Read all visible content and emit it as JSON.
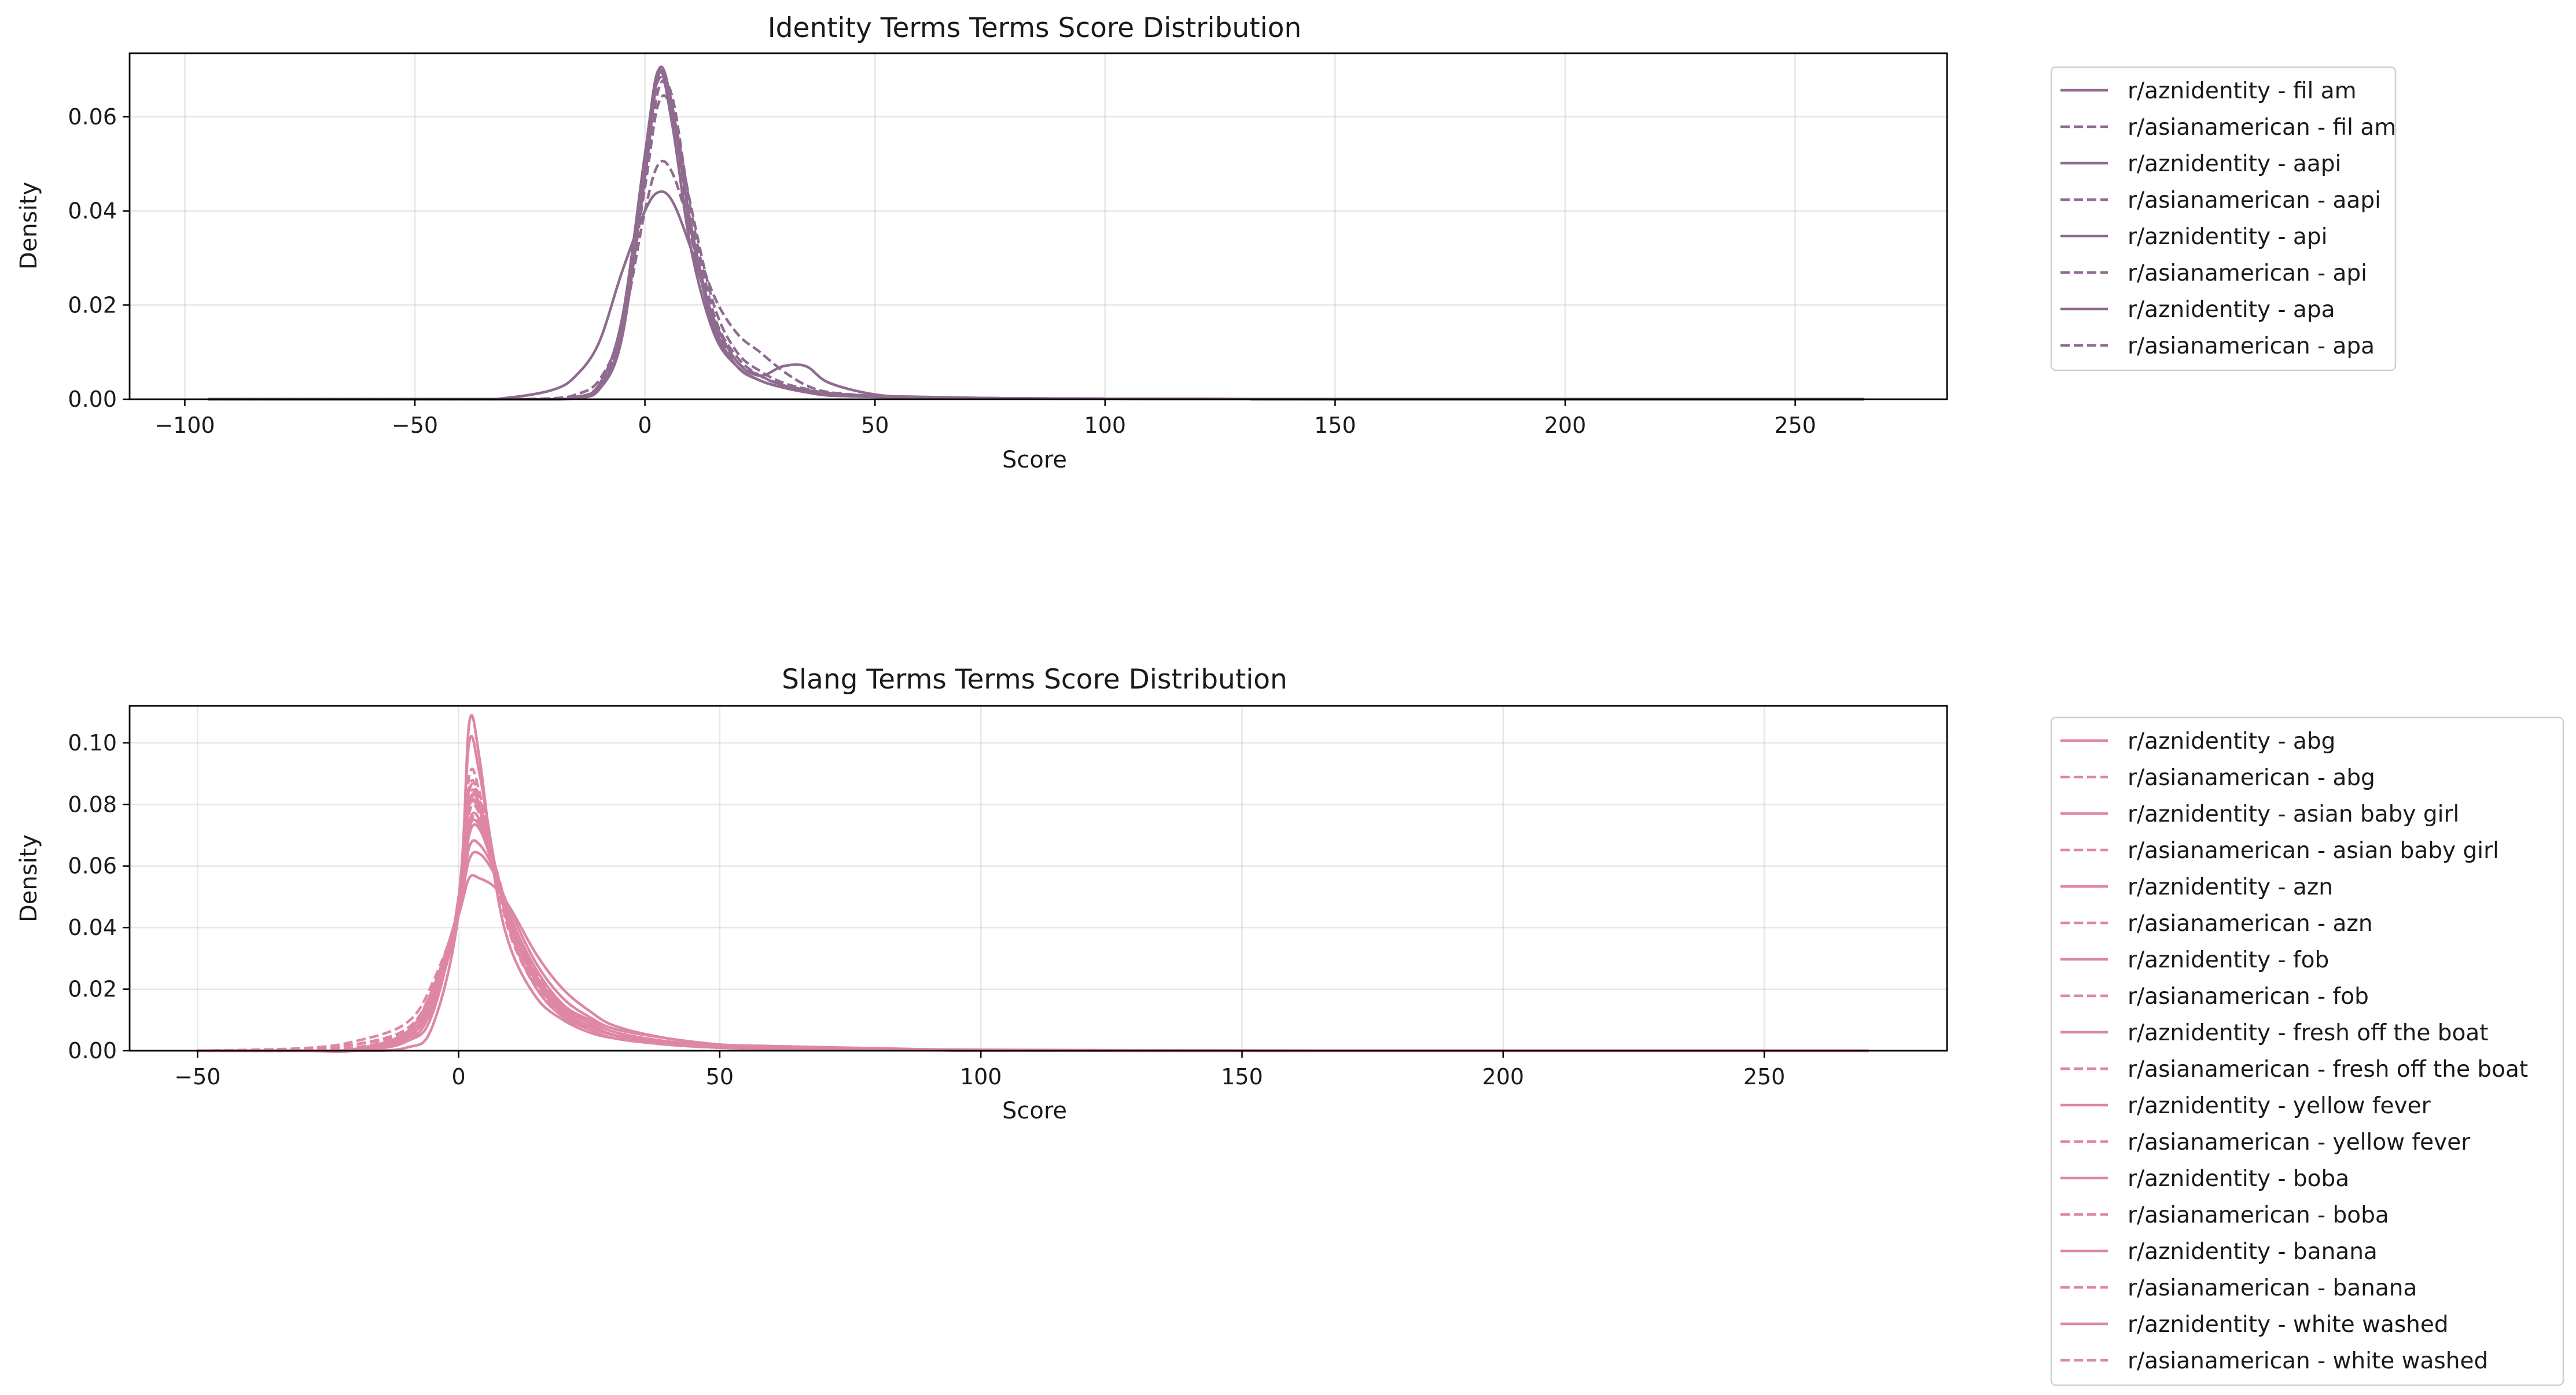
{
  "charts": [
    {
      "title": "Identity Terms Terms Score Distribution",
      "xlabel": "Score",
      "ylabel": "Density",
      "xticks": [
        "−100",
        "−50",
        "0",
        "50",
        "100",
        "150",
        "200",
        "250"
      ],
      "yticks": [
        "0.00",
        "0.02",
        "0.04",
        "0.06"
      ],
      "legend": [
        "r/aznidentity - fil am",
        "r/asianamerican - fil am",
        "r/aznidentity - aapi",
        "r/asianamerican - aapi",
        "r/aznidentity - api",
        "r/asianamerican - api",
        "r/aznidentity - apa",
        "r/asianamerican - apa"
      ]
    },
    {
      "title": "Slang Terms Terms Score Distribution",
      "xlabel": "Score",
      "ylabel": "Density",
      "xticks": [
        "−50",
        "0",
        "50",
        "100",
        "150",
        "200",
        "250"
      ],
      "yticks": [
        "0.00",
        "0.02",
        "0.04",
        "0.06",
        "0.08",
        "0.10"
      ],
      "legend": [
        "r/aznidentity - abg",
        "r/asianamerican - abg",
        "r/aznidentity - asian baby girl",
        "r/asianamerican - asian baby girl",
        "r/aznidentity - azn",
        "r/asianamerican - azn",
        "r/aznidentity - fob",
        "r/asianamerican - fob",
        "r/aznidentity - fresh off the boat",
        "r/asianamerican - fresh off the boat",
        "r/aznidentity - yellow fever",
        "r/asianamerican - yellow fever",
        "r/aznidentity - boba",
        "r/asianamerican - boba",
        "r/aznidentity - banana",
        "r/asianamerican - banana",
        "r/aznidentity - white washed",
        "r/asianamerican - white washed"
      ]
    }
  ],
  "chart_data": [
    {
      "type": "line",
      "title": "Identity Terms Terms Score Distribution",
      "xlabel": "Score",
      "ylabel": "Density",
      "xlim": [
        -112,
        283
      ],
      "ylim": [
        0,
        0.0735
      ],
      "grid": true,
      "legend_position": "outside-right",
      "color": "#8f6b8f",
      "x": [
        -95,
        -40,
        -30,
        -20,
        -15,
        -10,
        -5,
        0,
        3,
        6,
        10,
        15,
        20,
        25,
        30,
        35,
        40,
        50,
        60,
        80,
        100,
        150,
        200,
        265
      ],
      "series": [
        {
          "name": "r/aznidentity - fil am",
          "dash": "solid",
          "values": [
            0,
            0,
            0,
            0,
            0.0005,
            0.003,
            0.017,
            0.052,
            0.07,
            0.058,
            0.032,
            0.014,
            0.007,
            0.004,
            0.0025,
            0.0015,
            0.0008,
            0.0005,
            0.0003,
            0.0002,
            0.0001,
            0,
            0,
            0
          ]
        },
        {
          "name": "r/asianamerican - fil am",
          "dash": "dashed",
          "values": [
            0,
            0,
            0,
            0,
            0.0004,
            0.0025,
            0.015,
            0.05,
            0.068,
            0.06,
            0.035,
            0.016,
            0.008,
            0.005,
            0.003,
            0.0018,
            0.001,
            0.0006,
            0.0004,
            0.0002,
            0.0001,
            0,
            0,
            0
          ]
        },
        {
          "name": "r/aznidentity - aapi",
          "dash": "solid",
          "values": [
            0,
            0,
            0,
            0,
            0.0003,
            0.002,
            0.013,
            0.048,
            0.07,
            0.062,
            0.036,
            0.015,
            0.007,
            0.004,
            0.0025,
            0.0015,
            0.0008,
            0.0005,
            0.0003,
            0.0002,
            0.0001,
            0,
            0,
            0
          ]
        },
        {
          "name": "r/asianamerican - aapi",
          "dash": "dashed",
          "values": [
            0,
            0,
            0,
            0,
            0.0004,
            0.003,
            0.016,
            0.046,
            0.066,
            0.064,
            0.04,
            0.018,
            0.009,
            0.005,
            0.003,
            0.002,
            0.0012,
            0.0007,
            0.0004,
            0.0002,
            0.0001,
            0,
            0,
            0
          ]
        },
        {
          "name": "r/aznidentity - api",
          "dash": "solid",
          "values": [
            0,
            0,
            0.0003,
            0.002,
            0.005,
            0.012,
            0.027,
            0.04,
            0.044,
            0.042,
            0.032,
            0.017,
            0.008,
            0.005,
            0.007,
            0.007,
            0.0035,
            0.001,
            0.0005,
            0.0002,
            0.0001,
            0,
            0,
            0
          ]
        },
        {
          "name": "r/asianamerican - api",
          "dash": "dashed",
          "values": [
            0,
            0,
            0,
            0.0002,
            0.001,
            0.004,
            0.015,
            0.04,
            0.05,
            0.048,
            0.036,
            0.022,
            0.014,
            0.01,
            0.006,
            0.003,
            0.0015,
            0.0007,
            0.0004,
            0.0002,
            0.0001,
            0,
            0,
            0
          ]
        },
        {
          "name": "r/aznidentity - apa",
          "dash": "solid",
          "values": [
            0,
            0,
            0,
            0,
            0.0003,
            0.0025,
            0.014,
            0.047,
            0.069,
            0.061,
            0.037,
            0.016,
            0.007,
            0.004,
            0.0025,
            0.0015,
            0.0009,
            0.0006,
            0.0003,
            0.0002,
            0.0001,
            0,
            0,
            0
          ]
        },
        {
          "name": "r/asianamerican - apa",
          "dash": "dashed",
          "values": [
            0,
            0,
            0,
            0,
            0.0004,
            0.003,
            0.015,
            0.045,
            0.063,
            0.061,
            0.041,
            0.02,
            0.01,
            0.006,
            0.0035,
            0.0022,
            0.0013,
            0.0007,
            0.0004,
            0.0002,
            0.0001,
            0,
            0,
            0
          ]
        }
      ]
    },
    {
      "type": "line",
      "title": "Slang Terms Terms Score Distribution",
      "xlabel": "Score",
      "ylabel": "Density",
      "xlim": [
        -63,
        285
      ],
      "ylim": [
        0,
        0.112
      ],
      "grid": true,
      "legend_position": "outside-right",
      "color": "#de87a4",
      "x": [
        -50,
        -30,
        -20,
        -10,
        -5,
        0,
        2,
        4,
        7,
        10,
        15,
        20,
        25,
        30,
        40,
        50,
        60,
        80,
        100,
        150,
        200,
        270
      ],
      "series": [
        {
          "name": "r/aznidentity - abg",
          "dash": "solid",
          "values": [
            0,
            0,
            0,
            0.003,
            0.012,
            0.05,
            0.1,
            0.09,
            0.06,
            0.038,
            0.02,
            0.011,
            0.007,
            0.004,
            0.002,
            0.001,
            0.0006,
            0.0003,
            0.0001,
            0,
            0,
            0
          ]
        },
        {
          "name": "r/asianamerican - abg",
          "dash": "dashed",
          "values": [
            0,
            0,
            0.001,
            0.005,
            0.015,
            0.045,
            0.085,
            0.082,
            0.06,
            0.04,
            0.022,
            0.012,
            0.007,
            0.004,
            0.002,
            0.001,
            0.0006,
            0.0003,
            0.0001,
            0,
            0,
            0
          ]
        },
        {
          "name": "r/aznidentity - asian baby girl",
          "dash": "solid",
          "values": [
            0,
            0,
            0,
            0.001,
            0.008,
            0.045,
            0.106,
            0.095,
            0.055,
            0.033,
            0.017,
            0.01,
            0.006,
            0.004,
            0.002,
            0.001,
            0.0005,
            0.0002,
            0.0001,
            0,
            0,
            0
          ]
        },
        {
          "name": "r/asianamerican - asian baby girl",
          "dash": "dashed",
          "values": [
            0,
            0,
            0.001,
            0.004,
            0.014,
            0.048,
            0.089,
            0.084,
            0.058,
            0.037,
            0.02,
            0.011,
            0.007,
            0.004,
            0.002,
            0.001,
            0.0006,
            0.0003,
            0.0001,
            0,
            0,
            0
          ]
        },
        {
          "name": "r/aznidentity - azn",
          "dash": "solid",
          "values": [
            0,
            0,
            0,
            0.004,
            0.016,
            0.045,
            0.07,
            0.072,
            0.058,
            0.042,
            0.024,
            0.014,
            0.009,
            0.005,
            0.003,
            0.0015,
            0.0008,
            0.0004,
            0.0002,
            0,
            0,
            0
          ]
        },
        {
          "name": "r/asianamerican - azn",
          "dash": "dashed",
          "values": [
            0,
            0.0005,
            0.002,
            0.007,
            0.02,
            0.046,
            0.078,
            0.078,
            0.06,
            0.041,
            0.023,
            0.013,
            0.008,
            0.005,
            0.0025,
            0.0012,
            0.0007,
            0.0003,
            0.0001,
            0,
            0,
            0
          ]
        },
        {
          "name": "r/aznidentity - fob",
          "dash": "solid",
          "values": [
            0,
            0,
            0.0005,
            0.006,
            0.02,
            0.046,
            0.062,
            0.064,
            0.057,
            0.045,
            0.028,
            0.017,
            0.011,
            0.007,
            0.004,
            0.002,
            0.001,
            0.0005,
            0.0002,
            0,
            0,
            0
          ]
        },
        {
          "name": "r/asianamerican - fob",
          "dash": "dashed",
          "values": [
            0,
            0.0005,
            0.002,
            0.007,
            0.02,
            0.047,
            0.077,
            0.077,
            0.06,
            0.042,
            0.024,
            0.014,
            0.009,
            0.005,
            0.0025,
            0.0012,
            0.0007,
            0.0003,
            0.0001,
            0,
            0,
            0
          ]
        },
        {
          "name": "r/aznidentity - fresh off the boat",
          "dash": "solid",
          "values": [
            0,
            0,
            0,
            0.004,
            0.016,
            0.044,
            0.056,
            0.056,
            0.053,
            0.046,
            0.031,
            0.02,
            0.013,
            0.008,
            0.004,
            0.002,
            0.0015,
            0.0008,
            0.0003,
            0.0001,
            0,
            0
          ]
        },
        {
          "name": "r/asianamerican - fresh off the boat",
          "dash": "dashed",
          "values": [
            0,
            0.0008,
            0.003,
            0.009,
            0.022,
            0.046,
            0.073,
            0.074,
            0.06,
            0.043,
            0.025,
            0.015,
            0.009,
            0.005,
            0.0025,
            0.0013,
            0.0007,
            0.0003,
            0.0001,
            0,
            0,
            0
          ]
        },
        {
          "name": "r/aznidentity - yellow fever",
          "dash": "solid",
          "values": [
            0,
            0,
            0.0005,
            0.005,
            0.018,
            0.046,
            0.066,
            0.067,
            0.058,
            0.043,
            0.026,
            0.015,
            0.01,
            0.006,
            0.003,
            0.0015,
            0.0008,
            0.0004,
            0.0002,
            0,
            0,
            0
          ]
        },
        {
          "name": "r/asianamerican - yellow fever",
          "dash": "dashed",
          "values": [
            0,
            0.0005,
            0.002,
            0.007,
            0.019,
            0.047,
            0.08,
            0.079,
            0.06,
            0.041,
            0.023,
            0.013,
            0.008,
            0.005,
            0.0025,
            0.0012,
            0.0007,
            0.0003,
            0.0001,
            0,
            0,
            0
          ]
        },
        {
          "name": "r/aznidentity - boba",
          "dash": "solid",
          "values": [
            0,
            0,
            0,
            0.004,
            0.016,
            0.046,
            0.074,
            0.075,
            0.058,
            0.041,
            0.023,
            0.013,
            0.008,
            0.005,
            0.0025,
            0.0012,
            0.0007,
            0.0003,
            0.0001,
            0,
            0,
            0
          ]
        },
        {
          "name": "r/asianamerican - boba",
          "dash": "dashed",
          "values": [
            0,
            0.0005,
            0.002,
            0.006,
            0.018,
            0.047,
            0.082,
            0.08,
            0.059,
            0.04,
            0.022,
            0.012,
            0.008,
            0.005,
            0.0025,
            0.0012,
            0.0007,
            0.0003,
            0.0001,
            0,
            0,
            0
          ]
        },
        {
          "name": "r/aznidentity - banana",
          "dash": "solid",
          "values": [
            0,
            0,
            0,
            0.003,
            0.014,
            0.045,
            0.08,
            0.08,
            0.059,
            0.04,
            0.022,
            0.012,
            0.008,
            0.005,
            0.0025,
            0.0012,
            0.0007,
            0.0003,
            0.0001,
            0,
            0,
            0
          ]
        },
        {
          "name": "r/asianamerican - banana",
          "dash": "dashed",
          "values": [
            0,
            0.0005,
            0.002,
            0.006,
            0.018,
            0.047,
            0.084,
            0.081,
            0.059,
            0.039,
            0.021,
            0.012,
            0.007,
            0.004,
            0.002,
            0.001,
            0.0006,
            0.0003,
            0.0001,
            0,
            0,
            0
          ]
        },
        {
          "name": "r/aznidentity - white washed",
          "dash": "solid",
          "values": [
            0,
            0,
            0,
            0.004,
            0.016,
            0.046,
            0.072,
            0.073,
            0.058,
            0.041,
            0.024,
            0.014,
            0.009,
            0.005,
            0.0025,
            0.0012,
            0.0007,
            0.0003,
            0.0001,
            0,
            0,
            0
          ]
        },
        {
          "name": "r/asianamerican - white washed",
          "dash": "dashed",
          "values": [
            0,
            0.0005,
            0.002,
            0.006,
            0.018,
            0.047,
            0.079,
            0.078,
            0.059,
            0.04,
            0.022,
            0.013,
            0.008,
            0.005,
            0.0025,
            0.0012,
            0.0007,
            0.0003,
            0.0001,
            0,
            0,
            0
          ]
        }
      ]
    }
  ]
}
